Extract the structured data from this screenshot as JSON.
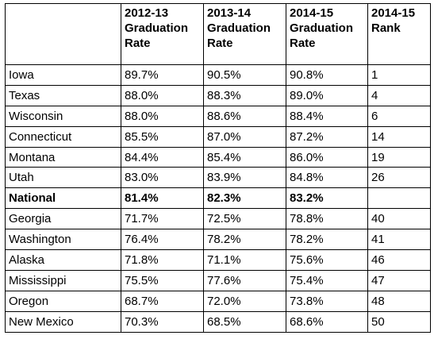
{
  "table": {
    "headers": [
      "",
      "2012-13 Graduation Rate",
      "2013-14 Graduation Rate",
      "2014-15 Graduation Rate",
      "2014-15 Rank"
    ],
    "rows": [
      {
        "state": "Iowa",
        "r1213": "89.7%",
        "r1314": "90.5%",
        "r1415": "90.8%",
        "rank": "1"
      },
      {
        "state": "Texas",
        "r1213": "88.0%",
        "r1314": "88.3%",
        "r1415": "89.0%",
        "rank": "4"
      },
      {
        "state": "Wisconsin",
        "r1213": "88.0%",
        "r1314": "88.6%",
        "r1415": "88.4%",
        "rank": "6"
      },
      {
        "state": "Connecticut",
        "r1213": "85.5%",
        "r1314": "87.0%",
        "r1415": "87.2%",
        "rank": "14"
      },
      {
        "state": "Montana",
        "r1213": "84.4%",
        "r1314": "85.4%",
        "r1415": "86.0%",
        "rank": "19"
      },
      {
        "state": "Utah",
        "r1213": "83.0%",
        "r1314": "83.9%",
        "r1415": "84.8%",
        "rank": "26"
      },
      {
        "state": "National",
        "r1213": "81.4%",
        "r1314": "82.3%",
        "r1415": "83.2%",
        "rank": ""
      },
      {
        "state": "Georgia",
        "r1213": "71.7%",
        "r1314": "72.5%",
        "r1415": "78.8%",
        "rank": "40"
      },
      {
        "state": "Washington",
        "r1213": "76.4%",
        "r1314": "78.2%",
        "r1415": "78.2%",
        "rank": "41"
      },
      {
        "state": "Alaska",
        "r1213": "71.8%",
        "r1314": "71.1%",
        "r1415": "75.6%",
        "rank": "46"
      },
      {
        "state": "Mississippi",
        "r1213": "75.5%",
        "r1314": "77.6%",
        "r1415": "75.4%",
        "rank": "47"
      },
      {
        "state": "Oregon",
        "r1213": "68.7%",
        "r1314": "72.0%",
        "r1415": "73.8%",
        "rank": "48"
      },
      {
        "state": "New Mexico",
        "r1213": "70.3%",
        "r1314": "68.5%",
        "r1415": "68.6%",
        "rank": "50"
      }
    ]
  }
}
